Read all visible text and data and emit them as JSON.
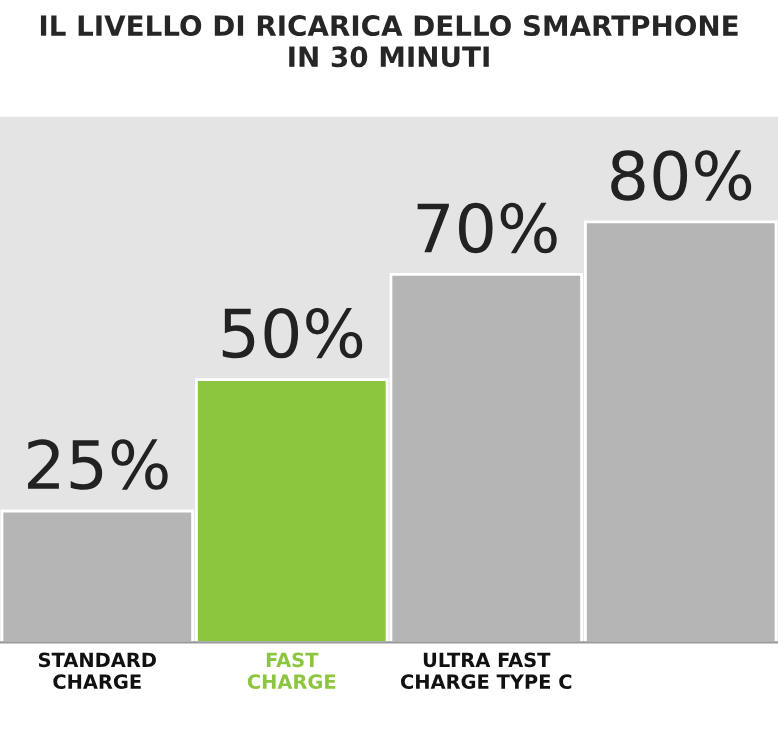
{
  "chart_data": {
    "type": "bar",
    "title": "IL LIVELLO DI RICARICA DELLO SMARTPHONE\nIN 30 MINUTI",
    "categories": [
      "STANDARD\nCHARGE",
      "FAST\nCHARGE",
      "ULTRA FAST\nCHARGE TYPE C",
      null
    ],
    "values": [
      25,
      50,
      70,
      80
    ],
    "colors": [
      "#b5b5b5",
      "#8cc63f",
      "#b5b5b5",
      "#b5b5b5"
    ],
    "value_labels": [
      "25%",
      "50%",
      "70%",
      "80%"
    ]
  }
}
